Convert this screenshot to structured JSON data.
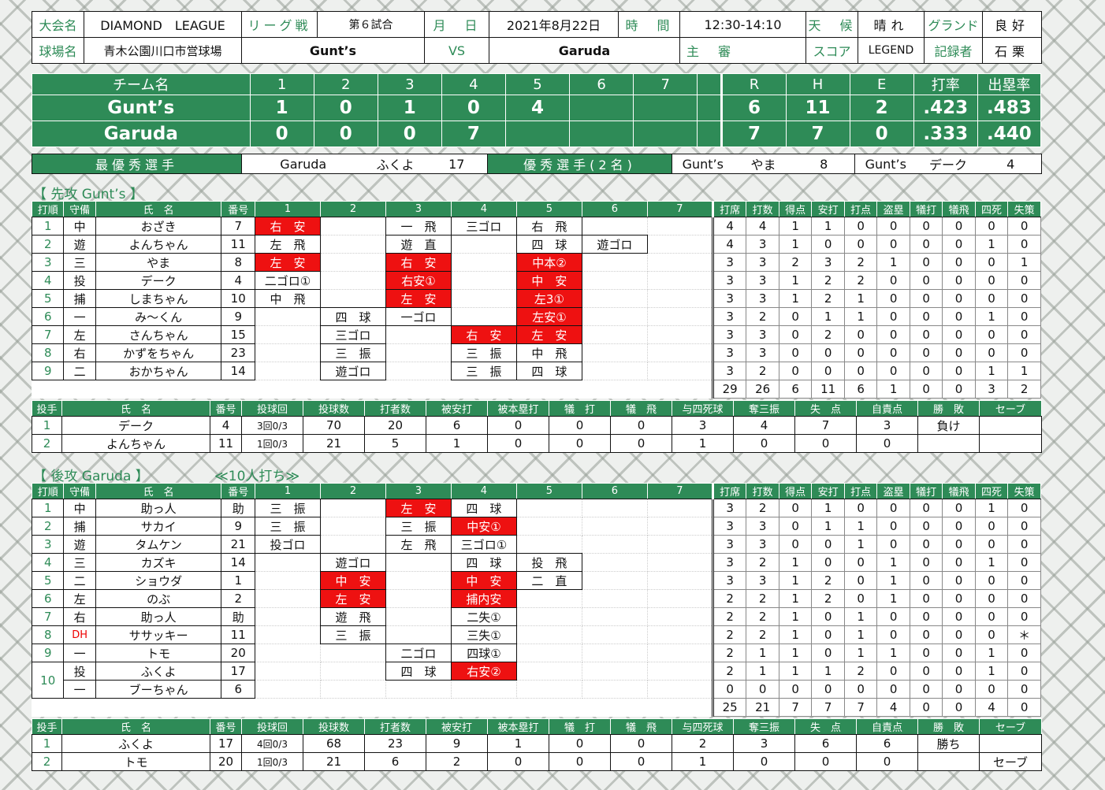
{
  "header": {
    "taikai_label": "大会名",
    "taikai": "DIAMOND　LEAGUE",
    "type": "リーグ戦",
    "game_no": "第６試合",
    "date_label": "月　日",
    "date": "2021年8月22日",
    "time_label": "時　間",
    "time": "12:30-14:10",
    "weather_label": "天　候",
    "weather": "晴れ",
    "ground_label": "グランド",
    "ground": "良好",
    "stadium_label": "球場名",
    "stadium": "青木公園川口市営球場",
    "team1": "Gunt’s",
    "vs": "VS",
    "team2": "Garuda",
    "umpire_label": "主　審",
    "umpire": "",
    "score_label": "スコア",
    "score": "LEGEND",
    "recorder_label": "記録者",
    "recorder": "石栗"
  },
  "scoreboard": {
    "headers": [
      "チーム名",
      "1",
      "2",
      "3",
      "4",
      "5",
      "6",
      "7",
      "",
      "R",
      "H",
      "E",
      "打率",
      "出塁率"
    ],
    "rows": [
      [
        "Gunt’s",
        "1",
        "0",
        "1",
        "0",
        "4",
        "",
        "",
        "",
        "6",
        "11",
        "2",
        ".423",
        ".483"
      ],
      [
        "Garuda",
        "0",
        "0",
        "0",
        "7",
        "",
        "",
        "",
        "",
        "7",
        "7",
        "0",
        ".333",
        ".440"
      ]
    ]
  },
  "mvp": {
    "best_label": "最優秀選手",
    "best_team": "Garuda",
    "best_name": "ふくよ",
    "best_no": "17",
    "good_label": "優秀選手(2名)",
    "p1_team": "Gunt’s",
    "p1_name": "やま",
    "p1_no": "8",
    "p2_team": "Gunt’s",
    "p2_name": "デーク",
    "p2_no": "4"
  },
  "sections": {
    "first": "【 先攻 Gunt’s 】",
    "second": "【 後攻 Garuda 】",
    "second_note": "≪10人打ち≫"
  },
  "batting_headers": [
    "打順",
    "守備",
    "氏　名",
    "番号",
    "1",
    "2",
    "3",
    "4",
    "5",
    "6",
    "7",
    "打席",
    "打数",
    "得点",
    "安打",
    "打点",
    "盗塁",
    "犠打",
    "犠飛",
    "四死",
    "失策"
  ],
  "pitching_headers": [
    "投手",
    "氏　名",
    "番号",
    "投球回",
    "投球数",
    "打者数",
    "被安打",
    "被本塁打",
    "犠　打",
    "犠　飛",
    "与四死球",
    "奪三振",
    "失　点",
    "自責点",
    "勝　敗",
    "セーブ"
  ],
  "team1_batting": [
    {
      "order": "1",
      "pos": "中",
      "name": "おざき",
      "no": "7",
      "inn": [
        "右　安",
        "",
        "一　飛",
        "三ゴロ",
        "右　飛",
        "",
        ""
      ],
      "hit": [
        1,
        0,
        0,
        0,
        0,
        0,
        0
      ],
      "stats": [
        "4",
        "4",
        "1",
        "1",
        "0",
        "0",
        "0",
        "0",
        "0",
        "0"
      ]
    },
    {
      "order": "2",
      "pos": "遊",
      "name": "よんちゃん",
      "no": "11",
      "inn": [
        "左　飛",
        "",
        "遊　直",
        "",
        "四　球",
        "遊ゴロ",
        ""
      ],
      "hit": [
        0,
        0,
        0,
        0,
        0,
        0,
        0
      ],
      "stats": [
        "4",
        "3",
        "1",
        "0",
        "0",
        "0",
        "0",
        "0",
        "1",
        "0"
      ]
    },
    {
      "order": "3",
      "pos": "三",
      "name": "やま",
      "no": "8",
      "inn": [
        "左　安",
        "",
        "右　安",
        "",
        "中本②",
        "",
        ""
      ],
      "hit": [
        1,
        0,
        1,
        0,
        1,
        0,
        0
      ],
      "stats": [
        "3",
        "3",
        "2",
        "3",
        "2",
        "1",
        "0",
        "0",
        "0",
        "1"
      ]
    },
    {
      "order": "4",
      "pos": "投",
      "name": "デーク",
      "no": "4",
      "inn": [
        "二ゴロ①",
        "",
        "右安①",
        "",
        "中　安",
        "",
        ""
      ],
      "hit": [
        0,
        0,
        1,
        0,
        1,
        0,
        0
      ],
      "stats": [
        "3",
        "3",
        "1",
        "2",
        "2",
        "0",
        "0",
        "0",
        "0",
        "0"
      ]
    },
    {
      "order": "5",
      "pos": "捕",
      "name": "しまちゃん",
      "no": "10",
      "inn": [
        "中　飛",
        "",
        "左　安",
        "",
        "左3①",
        "",
        ""
      ],
      "hit": [
        0,
        0,
        1,
        0,
        1,
        0,
        0
      ],
      "stats": [
        "3",
        "3",
        "1",
        "2",
        "1",
        "0",
        "0",
        "0",
        "0",
        "0"
      ]
    },
    {
      "order": "6",
      "pos": "一",
      "name": "み～くん",
      "no": "9",
      "inn": [
        "",
        "四　球",
        "一ゴロ",
        "",
        "左安①",
        "",
        ""
      ],
      "hit": [
        0,
        0,
        0,
        0,
        1,
        0,
        0
      ],
      "stats": [
        "3",
        "2",
        "0",
        "1",
        "1",
        "0",
        "0",
        "0",
        "1",
        "0"
      ]
    },
    {
      "order": "7",
      "pos": "左",
      "name": "さんちゃん",
      "no": "15",
      "inn": [
        "",
        "三ゴロ",
        "",
        "右　安",
        "左　安",
        "",
        ""
      ],
      "hit": [
        0,
        0,
        0,
        1,
        1,
        0,
        0
      ],
      "stats": [
        "3",
        "3",
        "0",
        "2",
        "0",
        "0",
        "0",
        "0",
        "0",
        "0"
      ]
    },
    {
      "order": "8",
      "pos": "右",
      "name": "かずをちゃん",
      "no": "23",
      "inn": [
        "",
        "三　振",
        "",
        "三　振",
        "中　飛",
        "",
        ""
      ],
      "hit": [
        0,
        0,
        0,
        0,
        0,
        0,
        0
      ],
      "stats": [
        "3",
        "3",
        "0",
        "0",
        "0",
        "0",
        "0",
        "0",
        "0",
        "0"
      ]
    },
    {
      "order": "9",
      "pos": "二",
      "name": "おかちゃん",
      "no": "14",
      "inn": [
        "",
        "遊ゴロ",
        "",
        "三　振",
        "四　球",
        "",
        ""
      ],
      "hit": [
        0,
        0,
        0,
        0,
        0,
        0,
        0
      ],
      "stats": [
        "3",
        "2",
        "0",
        "0",
        "0",
        "0",
        "0",
        "0",
        "1",
        "1"
      ]
    }
  ],
  "team1_totals": [
    "29",
    "26",
    "6",
    "11",
    "6",
    "1",
    "0",
    "0",
    "3",
    "2"
  ],
  "team1_pitching": [
    {
      "idx": "1",
      "name": "デーク",
      "no": "4",
      "ip": "3回0/3",
      "vals": [
        "70",
        "20",
        "6",
        "0",
        "0",
        "0",
        "3",
        "4",
        "7",
        "3",
        "負け",
        ""
      ]
    },
    {
      "idx": "2",
      "name": "よんちゃん",
      "no": "11",
      "ip": "1回0/3",
      "vals": [
        "21",
        "5",
        "1",
        "0",
        "0",
        "0",
        "1",
        "0",
        "0",
        "0",
        "",
        ""
      ]
    }
  ],
  "team2_batting": [
    {
      "order": "1",
      "pos": "中",
      "name": "助っ人",
      "no": "助",
      "inn": [
        "三　振",
        "",
        "左　安",
        "四　球",
        "",
        "",
        ""
      ],
      "hit": [
        0,
        0,
        1,
        0,
        0,
        0,
        0
      ],
      "stats": [
        "3",
        "2",
        "0",
        "1",
        "0",
        "0",
        "0",
        "0",
        "1",
        "0"
      ]
    },
    {
      "order": "2",
      "pos": "捕",
      "name": "サカイ",
      "no": "9",
      "inn": [
        "三　振",
        "",
        "三　振",
        "中安①",
        "",
        "",
        ""
      ],
      "hit": [
        0,
        0,
        0,
        1,
        0,
        0,
        0
      ],
      "stats": [
        "3",
        "3",
        "0",
        "1",
        "1",
        "0",
        "0",
        "0",
        "0",
        "0"
      ]
    },
    {
      "order": "3",
      "pos": "遊",
      "name": "タムケン",
      "no": "21",
      "inn": [
        "投ゴロ",
        "",
        "左　飛",
        "三ゴロ①",
        "",
        "",
        ""
      ],
      "hit": [
        0,
        0,
        0,
        0,
        0,
        0,
        0
      ],
      "stats": [
        "3",
        "3",
        "0",
        "0",
        "1",
        "0",
        "0",
        "0",
        "0",
        "0"
      ]
    },
    {
      "order": "4",
      "pos": "三",
      "name": "カズキ",
      "no": "14",
      "inn": [
        "",
        "遊ゴロ",
        "",
        "四　球",
        "投　飛",
        "",
        ""
      ],
      "hit": [
        0,
        0,
        0,
        0,
        0,
        0,
        0
      ],
      "stats": [
        "3",
        "2",
        "1",
        "0",
        "0",
        "1",
        "0",
        "0",
        "1",
        "0"
      ]
    },
    {
      "order": "5",
      "pos": "二",
      "name": "ショウダ",
      "no": "1",
      "inn": [
        "",
        "中　安",
        "",
        "中　安",
        "二　直",
        "",
        ""
      ],
      "hit": [
        0,
        1,
        0,
        1,
        0,
        0,
        0
      ],
      "stats": [
        "3",
        "3",
        "1",
        "2",
        "0",
        "1",
        "0",
        "0",
        "0",
        "0"
      ]
    },
    {
      "order": "6",
      "pos": "左",
      "name": "のぶ",
      "no": "2",
      "inn": [
        "",
        "左　安",
        "",
        "捕内安",
        "",
        "",
        ""
      ],
      "hit": [
        0,
        1,
        0,
        1,
        0,
        0,
        0
      ],
      "stats": [
        "2",
        "2",
        "1",
        "2",
        "0",
        "1",
        "0",
        "0",
        "0",
        "0"
      ]
    },
    {
      "order": "7",
      "pos": "右",
      "name": "助っ人",
      "no": "助",
      "inn": [
        "",
        "遊　飛",
        "",
        "二失①",
        "",
        "",
        ""
      ],
      "hit": [
        0,
        0,
        0,
        0,
        0,
        0,
        0
      ],
      "stats": [
        "2",
        "2",
        "1",
        "0",
        "1",
        "0",
        "0",
        "0",
        "0",
        "0"
      ]
    },
    {
      "order": "8",
      "pos": "DH",
      "name": "ササッキー",
      "no": "11",
      "inn": [
        "",
        "三　振",
        "",
        "三失①",
        "",
        "",
        ""
      ],
      "hit": [
        0,
        0,
        0,
        0,
        0,
        0,
        0
      ],
      "stats": [
        "2",
        "2",
        "1",
        "0",
        "1",
        "0",
        "0",
        "0",
        "0",
        "＊"
      ]
    },
    {
      "order": "9",
      "pos": "一",
      "name": "トモ",
      "no": "20",
      "inn": [
        "",
        "",
        "二ゴロ",
        "四球①",
        "",
        "",
        ""
      ],
      "hit": [
        0,
        0,
        0,
        0,
        0,
        0,
        0
      ],
      "stats": [
        "2",
        "1",
        "1",
        "0",
        "1",
        "1",
        "0",
        "0",
        "1",
        "0"
      ]
    },
    {
      "order": "10",
      "pos": "投",
      "name": "ふくよ",
      "no": "17",
      "inn": [
        "",
        "",
        "四　球",
        "右安②",
        "",
        "",
        ""
      ],
      "hit": [
        0,
        0,
        0,
        1,
        0,
        0,
        0
      ],
      "stats": [
        "2",
        "1",
        "1",
        "1",
        "2",
        "0",
        "0",
        "0",
        "1",
        "0"
      ]
    },
    {
      "order": "",
      "pos": "一",
      "name": "ブーちゃん",
      "no": "6",
      "inn": [
        "",
        "",
        "",
        "",
        "",
        "",
        ""
      ],
      "hit": [
        0,
        0,
        0,
        0,
        0,
        0,
        0
      ],
      "stats": [
        "0",
        "0",
        "0",
        "0",
        "0",
        "0",
        "0",
        "0",
        "0",
        "0"
      ]
    }
  ],
  "team2_totals": [
    "25",
    "21",
    "7",
    "7",
    "7",
    "4",
    "0",
    "0",
    "4",
    "0"
  ],
  "team2_pitching": [
    {
      "idx": "1",
      "name": "ふくよ",
      "no": "17",
      "ip": "4回0/3",
      "vals": [
        "68",
        "23",
        "9",
        "1",
        "0",
        "0",
        "2",
        "3",
        "6",
        "6",
        "勝ち",
        ""
      ]
    },
    {
      "idx": "2",
      "name": "トモ",
      "no": "20",
      "ip": "1回0/3",
      "vals": [
        "21",
        "6",
        "2",
        "0",
        "0",
        "0",
        "1",
        "0",
        "0",
        "0",
        "",
        "セーブ"
      ]
    }
  ]
}
